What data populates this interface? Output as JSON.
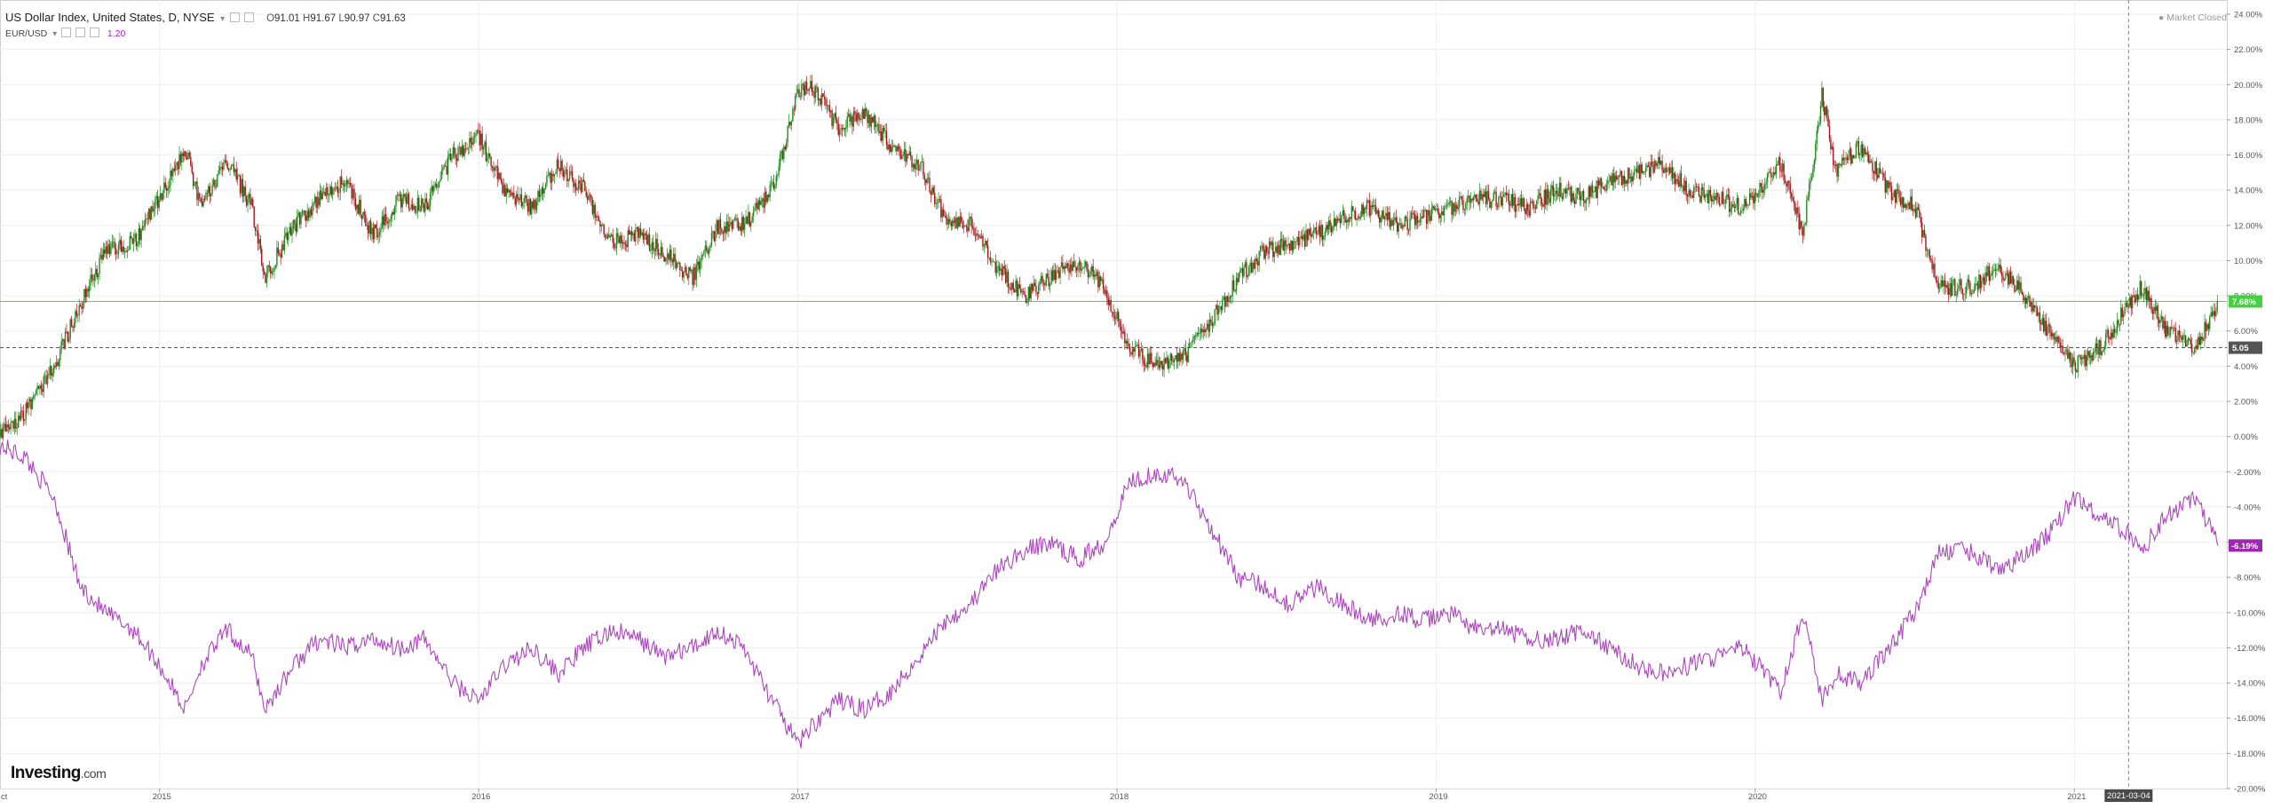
{
  "header": {
    "title": "US Dollar Index, United States, D, NYSE",
    "ohlc": {
      "o_label": "O",
      "o": "91.01",
      "h_label": "H",
      "h": "91.67",
      "l_label": "L",
      "l": "90.97",
      "c_label": "C",
      "c": "91.63"
    },
    "compare_symbol": "EUR/USD",
    "compare_value": "1.20",
    "market_status": "Market Closed"
  },
  "logo": {
    "brand": "Investing",
    "suffix": ".com"
  },
  "colors": {
    "up": "#1e8c1e",
    "down": "#a4161a",
    "compare": "#ab47bc",
    "hline": "#7ee87e",
    "grid": "#eeeeee"
  },
  "chart_data": {
    "type": "line",
    "xlabel": "",
    "ylabel": "",
    "ylim": [
      -20,
      24
    ],
    "y_ticks": [
      24,
      22,
      20,
      18,
      16,
      14,
      12,
      10,
      8,
      6,
      4,
      2,
      0,
      -2,
      -4,
      -6,
      -8,
      -10,
      -12,
      -14,
      -16,
      -18,
      -20
    ],
    "y_tick_labels": [
      "24.00%",
      "22.00%",
      "20.00%",
      "18.00%",
      "16.00%",
      "14.00%",
      "12.00%",
      "10.00%",
      "8.00%",
      "6.00%",
      "4.00%",
      "2.00%",
      "0.00%",
      "-2.00%",
      "-4.00%",
      "-6.00%",
      "-8.00%",
      "-10.00%",
      "-12.00%",
      "-14.00%",
      "-16.00%",
      "-18.00%",
      "-20.00%"
    ],
    "x_range": [
      2014.5,
      2021.45
    ],
    "x_ticks": [
      2015,
      2016,
      2017,
      2018,
      2019,
      2020,
      2021
    ],
    "x_tick_labels": [
      "2015",
      "2016",
      "2017",
      "2018",
      "2019",
      "2020",
      "2021"
    ],
    "x_edge_label": "ct",
    "crosshair": {
      "x": 2021.17,
      "label": "2021-03-04"
    },
    "price_lines": [
      {
        "value": 7.68,
        "label": "7.68%",
        "color": "#43d13d",
        "style": "solid"
      },
      {
        "value": 5.05,
        "label": "5.05",
        "color": "#555555",
        "style": "dashed"
      }
    ],
    "series": [
      {
        "type": "candlestick",
        "last_label": "7.68%",
        "points": [
          [
            2014.5,
            0.0
          ],
          [
            2014.58,
            1.5
          ],
          [
            2014.67,
            4.0
          ],
          [
            2014.75,
            7.5
          ],
          [
            2014.83,
            10.5
          ],
          [
            2014.92,
            11.0
          ],
          [
            2015.0,
            13.5
          ],
          [
            2015.08,
            16.5
          ],
          [
            2015.13,
            13.0
          ],
          [
            2015.21,
            15.8
          ],
          [
            2015.29,
            13.0
          ],
          [
            2015.33,
            9.0
          ],
          [
            2015.42,
            12.0
          ],
          [
            2015.5,
            13.5
          ],
          [
            2015.58,
            14.5
          ],
          [
            2015.67,
            11.5
          ],
          [
            2015.75,
            13.5
          ],
          [
            2015.83,
            13.0
          ],
          [
            2015.92,
            16.0
          ],
          [
            2016.0,
            17.0
          ],
          [
            2016.08,
            14.0
          ],
          [
            2016.17,
            13.0
          ],
          [
            2016.25,
            15.5
          ],
          [
            2016.33,
            14.0
          ],
          [
            2016.42,
            11.0
          ],
          [
            2016.5,
            11.5
          ],
          [
            2016.58,
            10.5
          ],
          [
            2016.67,
            9.0
          ],
          [
            2016.75,
            12.0
          ],
          [
            2016.83,
            12.0
          ],
          [
            2016.92,
            14.0
          ],
          [
            2017.0,
            19.5
          ],
          [
            2017.04,
            20.0
          ],
          [
            2017.13,
            17.5
          ],
          [
            2017.21,
            18.5
          ],
          [
            2017.29,
            16.5
          ],
          [
            2017.38,
            15.5
          ],
          [
            2017.46,
            12.5
          ],
          [
            2017.54,
            12.0
          ],
          [
            2017.63,
            9.5
          ],
          [
            2017.71,
            8.0
          ],
          [
            2017.79,
            9.0
          ],
          [
            2017.88,
            10.0
          ],
          [
            2017.96,
            8.5
          ],
          [
            2018.04,
            5.0
          ],
          [
            2018.13,
            4.0
          ],
          [
            2018.21,
            4.5
          ],
          [
            2018.29,
            6.5
          ],
          [
            2018.38,
            9.0
          ],
          [
            2018.46,
            10.5
          ],
          [
            2018.54,
            11.0
          ],
          [
            2018.63,
            11.5
          ],
          [
            2018.71,
            12.5
          ],
          [
            2018.79,
            13.0
          ],
          [
            2018.88,
            12.0
          ],
          [
            2018.96,
            12.5
          ],
          [
            2019.04,
            13.0
          ],
          [
            2019.13,
            13.5
          ],
          [
            2019.21,
            13.5
          ],
          [
            2019.29,
            13.0
          ],
          [
            2019.38,
            14.0
          ],
          [
            2019.46,
            13.5
          ],
          [
            2019.54,
            14.5
          ],
          [
            2019.63,
            15.0
          ],
          [
            2019.71,
            15.5
          ],
          [
            2019.79,
            14.0
          ],
          [
            2019.88,
            13.5
          ],
          [
            2019.96,
            13.0
          ],
          [
            2020.08,
            15.5
          ],
          [
            2020.15,
            11.5
          ],
          [
            2020.21,
            19.5
          ],
          [
            2020.25,
            15.0
          ],
          [
            2020.33,
            16.5
          ],
          [
            2020.42,
            14.0
          ],
          [
            2020.5,
            13.0
          ],
          [
            2020.58,
            8.5
          ],
          [
            2020.67,
            8.5
          ],
          [
            2020.75,
            9.5
          ],
          [
            2020.83,
            8.5
          ],
          [
            2020.92,
            6.0
          ],
          [
            2021.0,
            4.0
          ],
          [
            2021.08,
            5.0
          ],
          [
            2021.17,
            7.5
          ],
          [
            2021.21,
            8.5
          ],
          [
            2021.29,
            6.0
          ],
          [
            2021.38,
            5.0
          ],
          [
            2021.45,
            7.68
          ]
        ]
      },
      {
        "name": "EUR/USD",
        "type": "line",
        "last_label": "-6.19%",
        "points": [
          [
            2014.5,
            -0.5
          ],
          [
            2014.58,
            -1.2
          ],
          [
            2014.67,
            -3.5
          ],
          [
            2014.75,
            -8.5
          ],
          [
            2014.83,
            -10.0
          ],
          [
            2014.92,
            -11.0
          ],
          [
            2015.0,
            -13.0
          ],
          [
            2015.08,
            -15.5
          ],
          [
            2015.13,
            -13.0
          ],
          [
            2015.21,
            -11.0
          ],
          [
            2015.29,
            -12.5
          ],
          [
            2015.33,
            -15.5
          ],
          [
            2015.42,
            -13.0
          ],
          [
            2015.5,
            -11.5
          ],
          [
            2015.58,
            -12.0
          ],
          [
            2015.67,
            -11.5
          ],
          [
            2015.75,
            -12.0
          ],
          [
            2015.83,
            -11.5
          ],
          [
            2015.92,
            -14.0
          ],
          [
            2016.0,
            -15.0
          ],
          [
            2016.08,
            -13.0
          ],
          [
            2016.17,
            -12.0
          ],
          [
            2016.25,
            -13.5
          ],
          [
            2016.33,
            -12.0
          ],
          [
            2016.42,
            -11.0
          ],
          [
            2016.5,
            -11.5
          ],
          [
            2016.58,
            -12.5
          ],
          [
            2016.67,
            -12.0
          ],
          [
            2016.75,
            -11.0
          ],
          [
            2016.83,
            -12.0
          ],
          [
            2016.92,
            -15.0
          ],
          [
            2017.0,
            -17.5
          ],
          [
            2017.04,
            -16.5
          ],
          [
            2017.13,
            -15.0
          ],
          [
            2017.21,
            -15.5
          ],
          [
            2017.29,
            -14.5
          ],
          [
            2017.38,
            -12.5
          ],
          [
            2017.46,
            -10.5
          ],
          [
            2017.54,
            -9.5
          ],
          [
            2017.63,
            -7.5
          ],
          [
            2017.71,
            -6.5
          ],
          [
            2017.79,
            -6.0
          ],
          [
            2017.88,
            -7.0
          ],
          [
            2017.96,
            -6.0
          ],
          [
            2018.04,
            -2.5
          ],
          [
            2018.13,
            -2.0
          ],
          [
            2018.21,
            -2.5
          ],
          [
            2018.29,
            -5.0
          ],
          [
            2018.38,
            -8.0
          ],
          [
            2018.46,
            -8.5
          ],
          [
            2018.54,
            -9.5
          ],
          [
            2018.63,
            -8.5
          ],
          [
            2018.71,
            -9.5
          ],
          [
            2018.79,
            -10.5
          ],
          [
            2018.88,
            -10.0
          ],
          [
            2018.96,
            -10.5
          ],
          [
            2019.04,
            -10.0
          ],
          [
            2019.13,
            -11.0
          ],
          [
            2019.21,
            -11.0
          ],
          [
            2019.29,
            -11.5
          ],
          [
            2019.38,
            -11.5
          ],
          [
            2019.46,
            -11.0
          ],
          [
            2019.54,
            -12.0
          ],
          [
            2019.63,
            -13.0
          ],
          [
            2019.71,
            -13.5
          ],
          [
            2019.79,
            -13.0
          ],
          [
            2019.88,
            -12.5
          ],
          [
            2019.96,
            -12.0
          ],
          [
            2020.08,
            -14.5
          ],
          [
            2020.15,
            -10.0
          ],
          [
            2020.21,
            -15.0
          ],
          [
            2020.25,
            -13.5
          ],
          [
            2020.33,
            -14.0
          ],
          [
            2020.42,
            -12.0
          ],
          [
            2020.5,
            -10.0
          ],
          [
            2020.58,
            -6.5
          ],
          [
            2020.67,
            -6.5
          ],
          [
            2020.75,
            -7.5
          ],
          [
            2020.83,
            -7.0
          ],
          [
            2020.92,
            -5.5
          ],
          [
            2021.0,
            -3.5
          ],
          [
            2021.08,
            -4.5
          ],
          [
            2021.17,
            -5.5
          ],
          [
            2021.21,
            -6.5
          ],
          [
            2021.29,
            -4.5
          ],
          [
            2021.38,
            -3.5
          ],
          [
            2021.45,
            -6.19
          ]
        ]
      }
    ]
  }
}
